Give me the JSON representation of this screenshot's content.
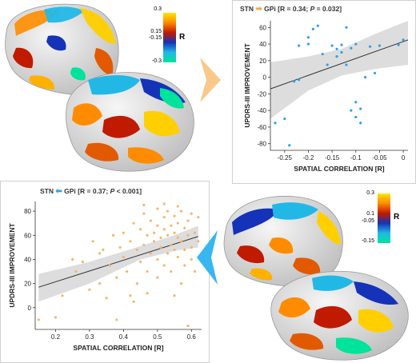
{
  "figure": {
    "arrow_top_color": "#f9c98a",
    "arrow_bottom_color": "#38b6ef",
    "colors": {
      "scatter_top": "#2fa3e6",
      "scatter_bottom": "#f5b66c",
      "ci_band": "#d7d7d7",
      "fit_line": "#333333",
      "brain_surface": "#e8e8e8"
    }
  },
  "colorbar_top": {
    "ticks": [
      "0.3",
      "0.15",
      "-0.15",
      "-0.3"
    ],
    "label": "R",
    "colors": [
      "#ffe500",
      "#ff8a00",
      "#c01a00",
      "#1533b8",
      "#22b8e6",
      "#00e39a"
    ]
  },
  "colorbar_bottom": {
    "ticks": [
      "0.3",
      "0.1",
      "-0.05",
      "-0.15"
    ],
    "label": "R",
    "colors": [
      "#ffe500",
      "#ff8a00",
      "#c01a00",
      "#1533b8",
      "#22b8e6",
      "#00e39a"
    ]
  },
  "chart_data": [
    {
      "type": "scatter",
      "title_prefix": "STN",
      "title_target": "GPi",
      "title_stats_r": "[R = 0.34;",
      "title_stats_p_symbol": "P",
      "title_stats_p": "= 0.032]",
      "arrow_color": "#f9b56d",
      "xlabel": "SPATIAL CORRELATION [R]",
      "ylabel": "UPDRS-III IMPROVEMENT",
      "xlim": [
        -0.28,
        0.01
      ],
      "ylim": [
        -88,
        68
      ],
      "xticks": [
        -0.25,
        -0.2,
        -0.15,
        -0.1,
        -0.05,
        0
      ],
      "xtick_labels": [
        "-0.25",
        "-0.2",
        "-0.15",
        "-0.1",
        "-0.05",
        "0"
      ],
      "yticks": [
        -80,
        -60,
        -40,
        -20,
        0,
        20,
        40,
        60
      ],
      "ytick_labels": [
        "-80",
        "-60",
        "-40",
        "-20",
        "0",
        "20",
        "40",
        "60"
      ],
      "fit": {
        "x": [
          -0.28,
          0.01
        ],
        "y": [
          -14,
          45
        ]
      },
      "ci_upper": [
        [
          -0.28,
          18
        ],
        [
          -0.2,
          25
        ],
        [
          -0.13,
          34
        ],
        [
          -0.06,
          52
        ],
        [
          0.01,
          75
        ]
      ],
      "ci_lower": [
        [
          -0.28,
          -50
        ],
        [
          -0.2,
          -16
        ],
        [
          -0.13,
          2
        ],
        [
          -0.06,
          10
        ],
        [
          0.01,
          15
        ]
      ],
      "points": [
        [
          -0.27,
          -55
        ],
        [
          -0.25,
          -50
        ],
        [
          -0.24,
          -82
        ],
        [
          -0.23,
          -5
        ],
        [
          -0.22,
          -3
        ],
        [
          -0.22,
          38
        ],
        [
          -0.2,
          40
        ],
        [
          -0.2,
          48
        ],
        [
          -0.19,
          58
        ],
        [
          -0.18,
          62
        ],
        [
          -0.17,
          28
        ],
        [
          -0.16,
          15
        ],
        [
          -0.15,
          38
        ],
        [
          -0.14,
          34
        ],
        [
          -0.14,
          25
        ],
        [
          -0.13,
          39
        ],
        [
          -0.13,
          30
        ],
        [
          -0.12,
          60
        ],
        [
          -0.12,
          15
        ],
        [
          -0.11,
          35
        ],
        [
          -0.11,
          -40
        ],
        [
          -0.1,
          40
        ],
        [
          -0.1,
          -30
        ],
        [
          -0.1,
          -48
        ],
        [
          -0.09,
          -38
        ],
        [
          -0.09,
          -55
        ],
        [
          -0.08,
          0
        ],
        [
          -0.07,
          37
        ],
        [
          -0.06,
          5
        ],
        [
          -0.05,
          38
        ],
        [
          -0.01,
          39
        ],
        [
          0.0,
          45
        ]
      ]
    },
    {
      "type": "scatter",
      "title_prefix": "STN",
      "title_target": "GPi",
      "title_stats_r": "[R = 0.37;",
      "title_stats_p_symbol": "P",
      "title_stats_p": "< 0.001]",
      "arrow_color": "#2fa3e6",
      "xlabel": "SPATIAL CORRELATION [R]",
      "ylabel": "UPDRS-III IMPROVEMENT",
      "xlim": [
        0.14,
        0.63
      ],
      "ylim": [
        -18,
        88
      ],
      "xticks": [
        0.2,
        0.3,
        0.4,
        0.5,
        0.6
      ],
      "xtick_labels": [
        "0.2",
        "0.3",
        "0.4",
        "0.5",
        "0.6"
      ],
      "yticks": [
        0,
        20,
        40,
        60,
        80
      ],
      "ytick_labels": [
        "0",
        "20",
        "40",
        "60",
        "80"
      ],
      "fit": {
        "x": [
          0.15,
          0.62
        ],
        "y": [
          17,
          59
        ]
      },
      "ci_upper": [
        [
          0.15,
          28
        ],
        [
          0.3,
          38
        ],
        [
          0.45,
          51
        ],
        [
          0.55,
          60
        ],
        [
          0.62,
          68
        ]
      ],
      "ci_lower": [
        [
          0.15,
          5
        ],
        [
          0.3,
          20
        ],
        [
          0.45,
          40
        ],
        [
          0.55,
          47
        ],
        [
          0.62,
          50
        ]
      ],
      "points": [
        [
          0.15,
          -10
        ],
        [
          0.2,
          -8
        ],
        [
          0.22,
          10
        ],
        [
          0.25,
          40
        ],
        [
          0.26,
          30
        ],
        [
          0.28,
          38
        ],
        [
          0.3,
          15
        ],
        [
          0.31,
          55
        ],
        [
          0.33,
          20
        ],
        [
          0.34,
          48
        ],
        [
          0.35,
          8
        ],
        [
          0.36,
          35
        ],
        [
          0.37,
          60
        ],
        [
          0.38,
          25
        ],
        [
          0.39,
          50
        ],
        [
          0.4,
          62
        ],
        [
          0.4,
          42
        ],
        [
          0.41,
          30
        ],
        [
          0.42,
          10
        ],
        [
          0.42,
          55
        ],
        [
          0.43,
          70
        ],
        [
          0.44,
          48
        ],
        [
          0.44,
          20
        ],
        [
          0.45,
          65
        ],
        [
          0.45,
          38
        ],
        [
          0.46,
          52
        ],
        [
          0.46,
          78
        ],
        [
          0.47,
          60
        ],
        [
          0.47,
          30
        ],
        [
          0.48,
          45
        ],
        [
          0.48,
          72
        ],
        [
          0.49,
          55
        ],
        [
          0.49,
          62
        ],
        [
          0.5,
          40
        ],
        [
          0.5,
          68
        ],
        [
          0.5,
          82
        ],
        [
          0.51,
          50
        ],
        [
          0.51,
          58
        ],
        [
          0.52,
          35
        ],
        [
          0.52,
          65
        ],
        [
          0.52,
          75
        ],
        [
          0.53,
          45
        ],
        [
          0.53,
          80
        ],
        [
          0.53,
          60
        ],
        [
          0.54,
          52
        ],
        [
          0.54,
          68
        ],
        [
          0.54,
          30
        ],
        [
          0.55,
          62
        ],
        [
          0.55,
          48
        ],
        [
          0.55,
          76
        ],
        [
          0.56,
          58
        ],
        [
          0.56,
          42
        ],
        [
          0.56,
          70
        ],
        [
          0.57,
          55
        ],
        [
          0.57,
          80
        ],
        [
          0.57,
          20
        ],
        [
          0.58,
          48
        ],
        [
          0.58,
          66
        ],
        [
          0.58,
          35
        ],
        [
          0.59,
          60
        ],
        [
          0.59,
          72
        ],
        [
          0.59,
          -15
        ],
        [
          0.6,
          50
        ],
        [
          0.6,
          78
        ],
        [
          0.6,
          40
        ],
        [
          0.61,
          62
        ],
        [
          0.61,
          30
        ],
        [
          0.62,
          55
        ],
        [
          0.62,
          75
        ],
        [
          0.47,
          12
        ],
        [
          0.43,
          5
        ],
        [
          0.38,
          -10
        ],
        [
          0.5,
          25
        ],
        [
          0.55,
          10
        ],
        [
          0.33,
          45
        ],
        [
          0.46,
          85
        ],
        [
          0.52,
          86
        ],
        [
          0.56,
          84
        ]
      ]
    }
  ]
}
